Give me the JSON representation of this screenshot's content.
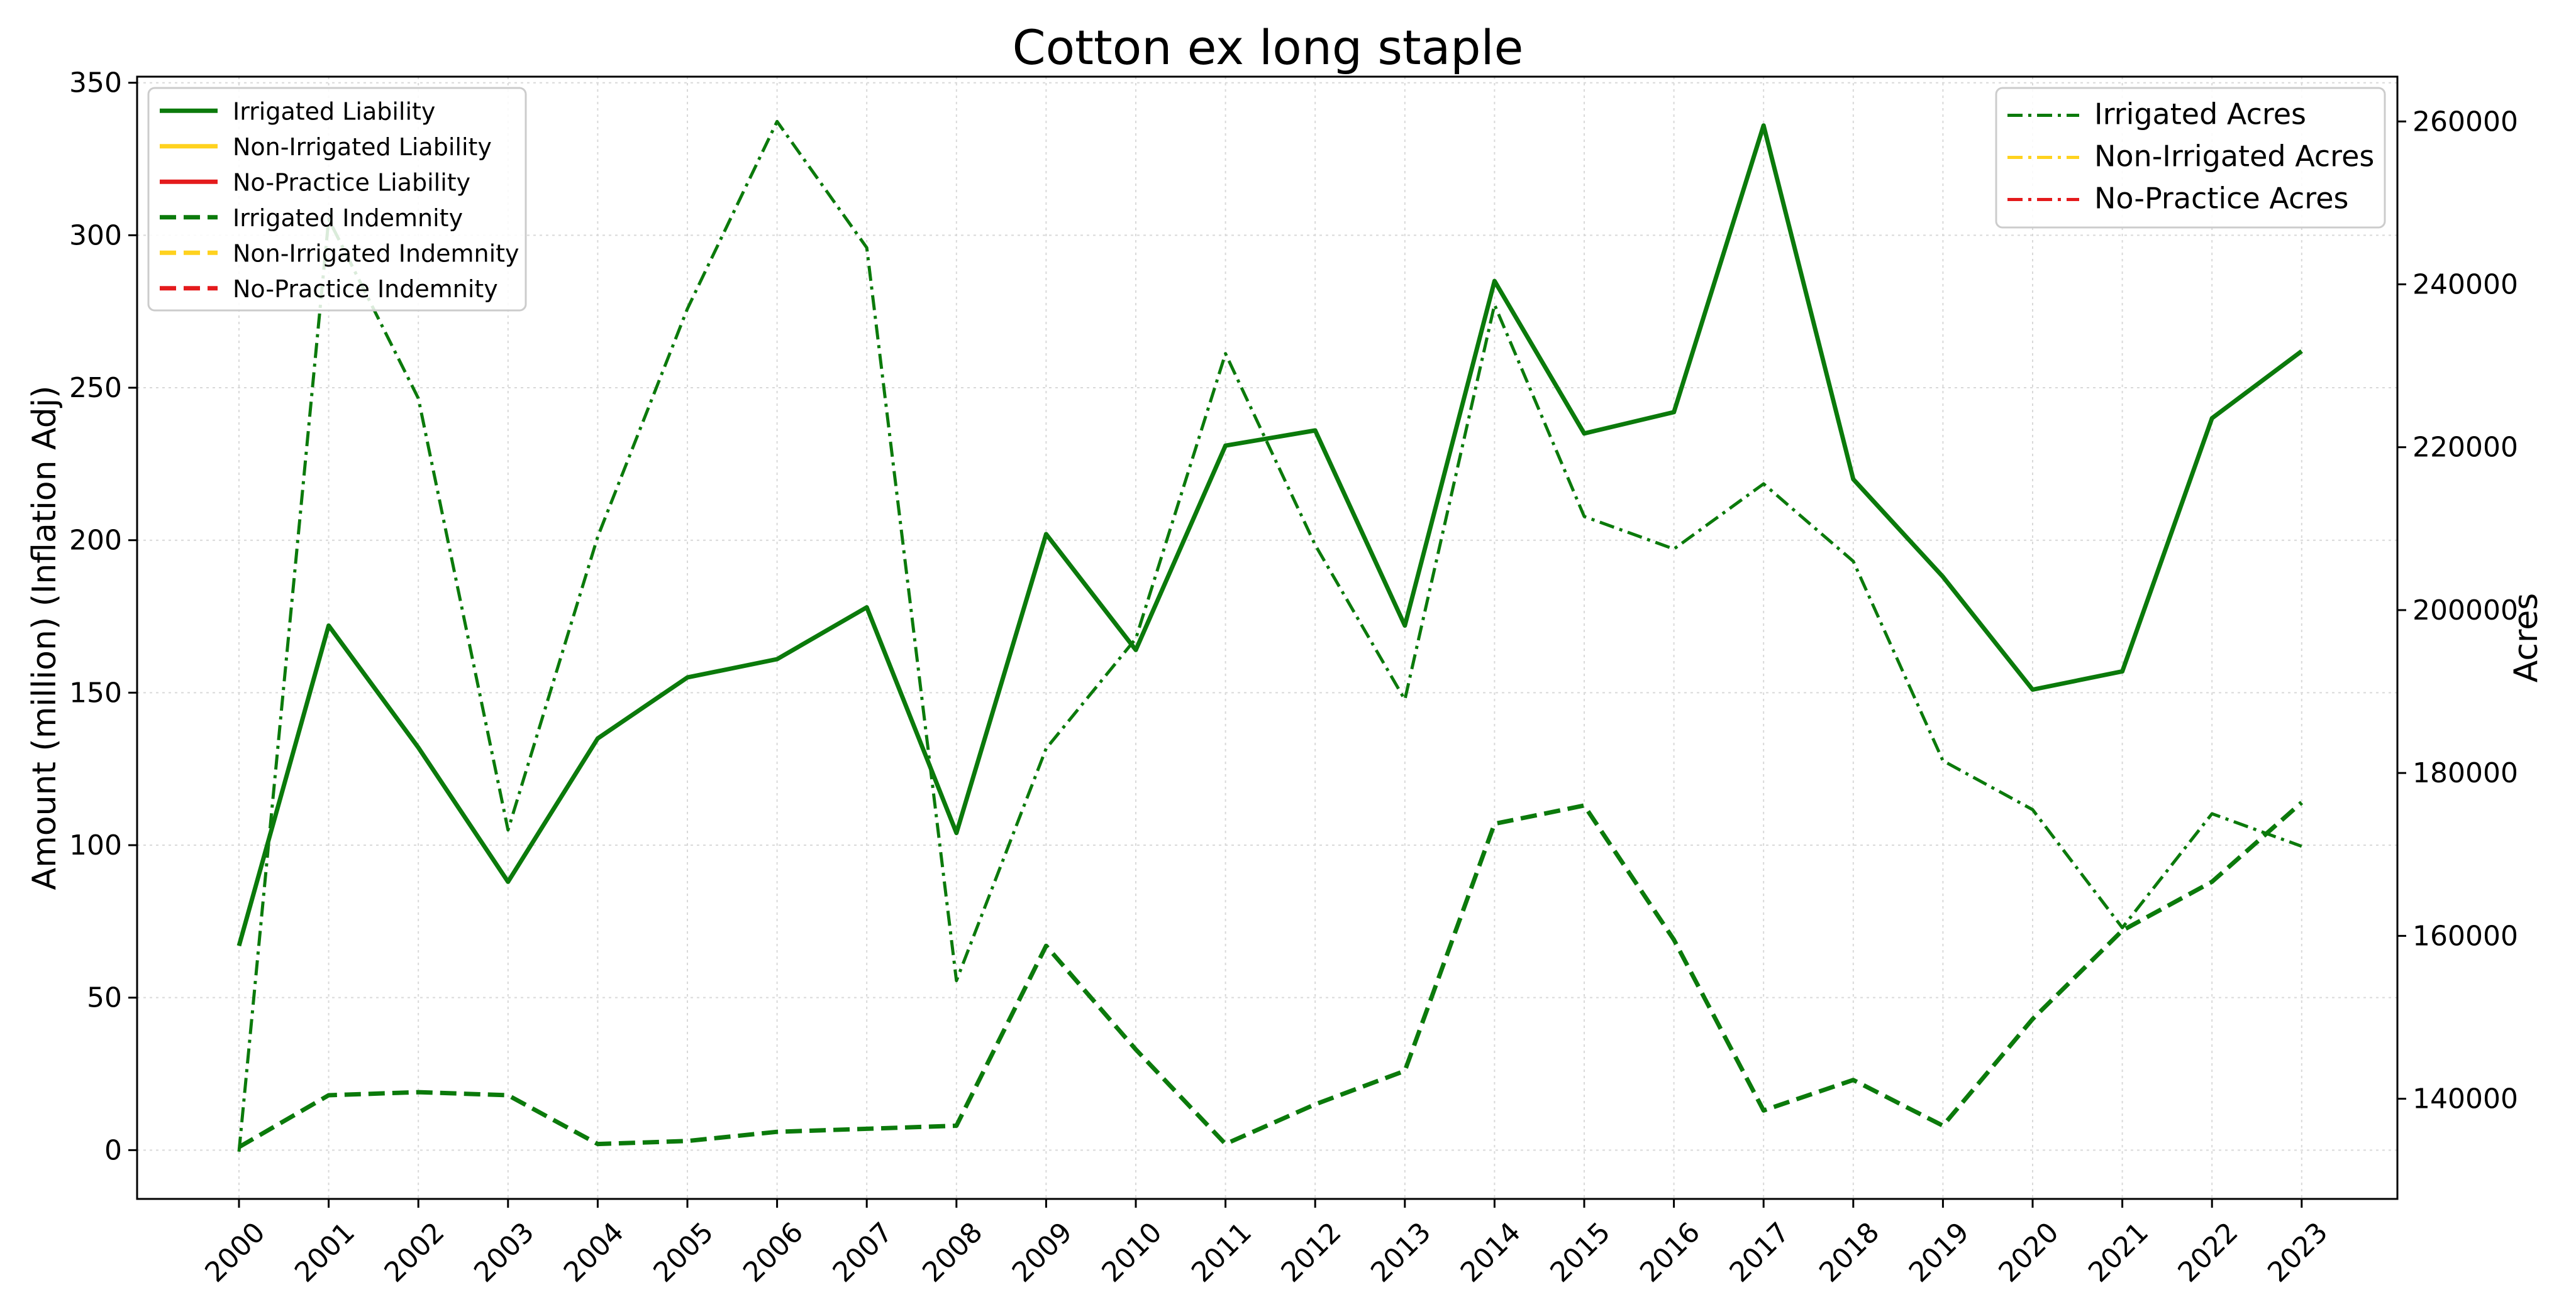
{
  "chart_data": {
    "type": "line",
    "title": "Cotton ex long staple",
    "ylabel_left": "Amount (million) (Inflation Adj)",
    "ylabel_right": "Acres",
    "xlabel": "",
    "x": [
      "2000",
      "2001",
      "2002",
      "2003",
      "2004",
      "2005",
      "2006",
      "2007",
      "2008",
      "2009",
      "2010",
      "2011",
      "2012",
      "2013",
      "2014",
      "2015",
      "2016",
      "2017",
      "2018",
      "2019",
      "2020",
      "2021",
      "2022",
      "2023"
    ],
    "ylim_left": [
      -16,
      352
    ],
    "ylim_right": [
      127700,
      265500
    ],
    "yticks_left": [
      0,
      50,
      100,
      150,
      200,
      250,
      300,
      350
    ],
    "yticks_right": [
      140000,
      160000,
      180000,
      200000,
      220000,
      240000,
      260000
    ],
    "yticks_right_labels": [
      "140000",
      "160000",
      "180000",
      "200000",
      "220000",
      "240000",
      "260000"
    ],
    "grid": true,
    "legend_left_placement": "top-left",
    "legend_right_placement": "top-right",
    "series_left": [
      {
        "name": "Irrigated Liability",
        "color": "#0b7a0b",
        "style": "solid",
        "values": [
          67,
          172,
          132,
          88,
          135,
          155,
          161,
          178,
          104,
          202,
          164,
          231,
          236,
          172,
          285,
          235,
          242,
          336,
          220,
          188,
          151,
          157,
          240,
          262
        ]
      },
      {
        "name": "Non-Irrigated Liability",
        "color": "#ffd21e",
        "style": "solid",
        "values": []
      },
      {
        "name": "No-Practice Liability",
        "color": "#e41a1c",
        "style": "solid",
        "values": []
      },
      {
        "name": "Irrigated Indemnity",
        "color": "#0b7a0b",
        "style": "dashed",
        "values": [
          1,
          18,
          19,
          18,
          2,
          3,
          6,
          7,
          8,
          67,
          33,
          2,
          15,
          26,
          107,
          113,
          69,
          13,
          23,
          8,
          43,
          72,
          88,
          114
        ]
      },
      {
        "name": "Non-Irrigated Indemnity",
        "color": "#ffd21e",
        "style": "dashed",
        "values": []
      },
      {
        "name": "No-Practice Indemnity",
        "color": "#e41a1c",
        "style": "dashed",
        "values": []
      }
    ],
    "series_right": [
      {
        "name": "Irrigated Acres",
        "color": "#0b7a0b",
        "style": "dashdot",
        "values": [
          133500,
          248000,
          226000,
          173000,
          209000,
          237000,
          260000,
          244500,
          154500,
          183000,
          196500,
          231500,
          208000,
          189000,
          237500,
          211500,
          207500,
          215500,
          206000,
          181500,
          175500,
          161000,
          175000,
          171000
        ]
      },
      {
        "name": "Non-Irrigated Acres",
        "color": "#ffd21e",
        "style": "dashdot",
        "values": []
      },
      {
        "name": "No-Practice Acres",
        "color": "#e41a1c",
        "style": "dashdot",
        "values": []
      }
    ]
  }
}
